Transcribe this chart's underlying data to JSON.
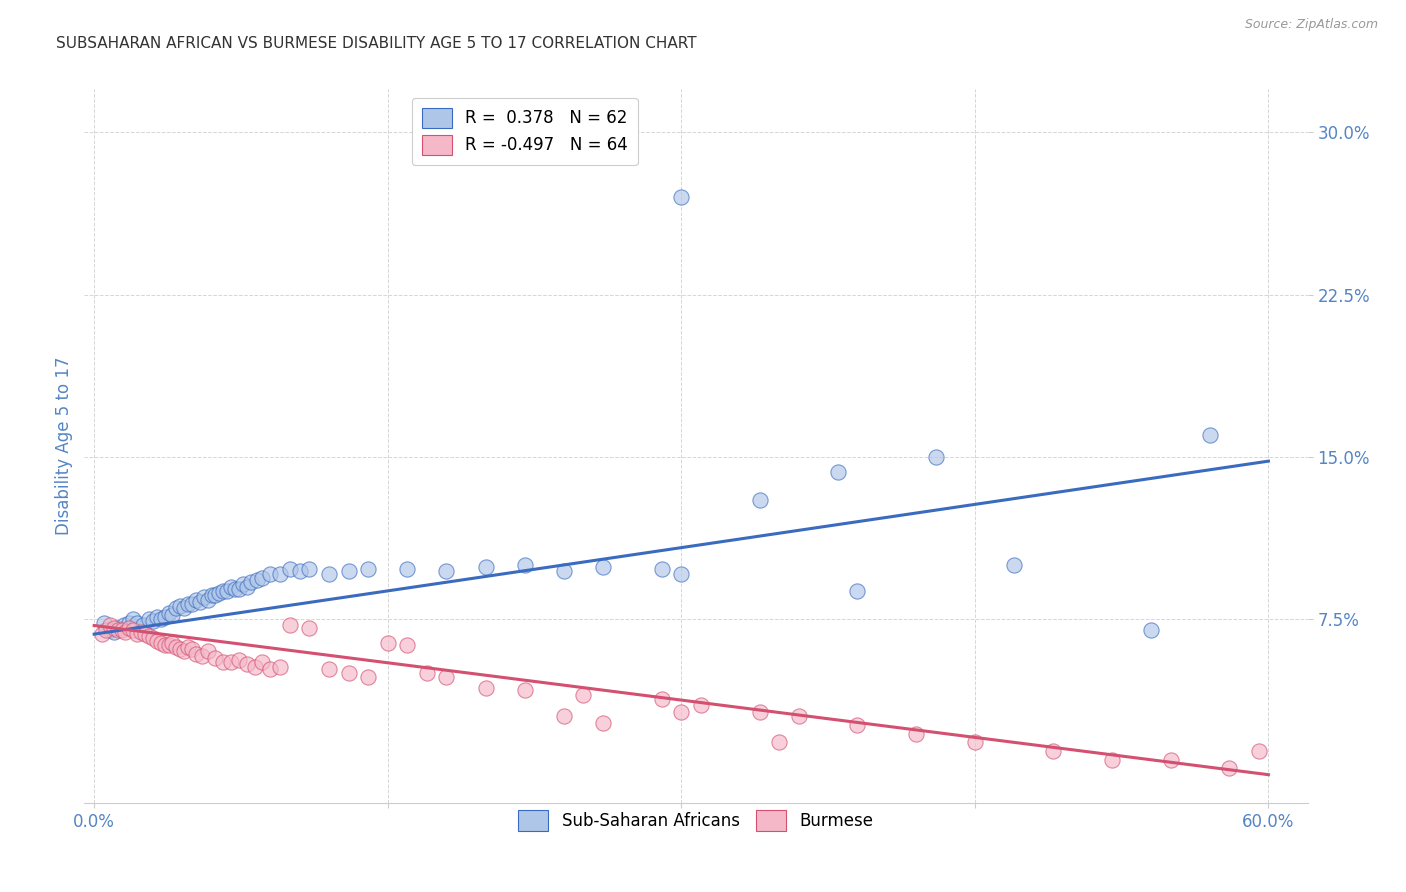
{
  "title": "SUBSAHARAN AFRICAN VS BURMESE DISABILITY AGE 5 TO 17 CORRELATION CHART",
  "source": "Source: ZipAtlas.com",
  "ylabel": "Disability Age 5 to 17",
  "xlim": [
    -0.005,
    0.62
  ],
  "ylim": [
    -0.01,
    0.32
  ],
  "xtick_positions": [
    0.0,
    0.15,
    0.3,
    0.45,
    0.6
  ],
  "xtick_labels": [
    "0.0%",
    "",
    "",
    "",
    "60.0%"
  ],
  "ytick_positions": [
    0.075,
    0.15,
    0.225,
    0.3
  ],
  "ytick_labels": [
    "7.5%",
    "15.0%",
    "22.5%",
    "30.0%"
  ],
  "legend1_label": "R =  0.378   N = 62",
  "legend2_label": "R = -0.497   N = 64",
  "legend_color1": "#aec6e8",
  "legend_color2": "#f4b8c8",
  "scatter_color1": "#aec6e8",
  "scatter_color2": "#f4b8c8",
  "line_color1": "#3a6bbf",
  "line_color2": "#d45070",
  "background_color": "#ffffff",
  "grid_color": "#cccccc",
  "title_color": "#333333",
  "axis_label_color": "#5585c5",
  "tick_label_color": "#5585c5",
  "source_color": "#999999",
  "line1_x": [
    0.0,
    0.6
  ],
  "line1_y": [
    0.068,
    0.148
  ],
  "line2_x": [
    0.0,
    0.6
  ],
  "line2_y": [
    0.072,
    0.003
  ],
  "sub_saharan_x": [
    0.005,
    0.008,
    0.01,
    0.012,
    0.015,
    0.018,
    0.02,
    0.022,
    0.025,
    0.028,
    0.03,
    0.032,
    0.034,
    0.036,
    0.038,
    0.04,
    0.042,
    0.044,
    0.046,
    0.048,
    0.05,
    0.052,
    0.054,
    0.056,
    0.058,
    0.06,
    0.062,
    0.064,
    0.066,
    0.068,
    0.07,
    0.072,
    0.074,
    0.076,
    0.078,
    0.08,
    0.083,
    0.086,
    0.09,
    0.095,
    0.1,
    0.105,
    0.11,
    0.12,
    0.13,
    0.14,
    0.16,
    0.18,
    0.2,
    0.22,
    0.24,
    0.26,
    0.29,
    0.3,
    0.34,
    0.38,
    0.43,
    0.47,
    0.54,
    0.57,
    0.3,
    0.39
  ],
  "sub_saharan_y": [
    0.073,
    0.07,
    0.069,
    0.071,
    0.072,
    0.073,
    0.075,
    0.073,
    0.072,
    0.075,
    0.074,
    0.076,
    0.075,
    0.076,
    0.078,
    0.077,
    0.08,
    0.081,
    0.08,
    0.082,
    0.082,
    0.084,
    0.083,
    0.085,
    0.084,
    0.086,
    0.086,
    0.087,
    0.088,
    0.088,
    0.09,
    0.089,
    0.089,
    0.091,
    0.09,
    0.092,
    0.093,
    0.094,
    0.096,
    0.096,
    0.098,
    0.097,
    0.098,
    0.096,
    0.097,
    0.098,
    0.098,
    0.097,
    0.099,
    0.1,
    0.097,
    0.099,
    0.098,
    0.27,
    0.13,
    0.143,
    0.15,
    0.1,
    0.07,
    0.16,
    0.096,
    0.088
  ],
  "burmese_x": [
    0.004,
    0.006,
    0.008,
    0.01,
    0.012,
    0.014,
    0.016,
    0.018,
    0.02,
    0.022,
    0.024,
    0.026,
    0.028,
    0.03,
    0.032,
    0.034,
    0.036,
    0.038,
    0.04,
    0.042,
    0.044,
    0.046,
    0.048,
    0.05,
    0.052,
    0.055,
    0.058,
    0.062,
    0.066,
    0.07,
    0.074,
    0.078,
    0.082,
    0.086,
    0.09,
    0.095,
    0.1,
    0.11,
    0.12,
    0.13,
    0.14,
    0.15,
    0.16,
    0.17,
    0.18,
    0.2,
    0.22,
    0.25,
    0.29,
    0.31,
    0.34,
    0.36,
    0.39,
    0.42,
    0.45,
    0.49,
    0.52,
    0.55,
    0.58,
    0.595,
    0.24,
    0.26,
    0.3,
    0.35
  ],
  "burmese_y": [
    0.068,
    0.07,
    0.072,
    0.071,
    0.07,
    0.07,
    0.069,
    0.071,
    0.07,
    0.068,
    0.069,
    0.068,
    0.067,
    0.066,
    0.065,
    0.064,
    0.063,
    0.063,
    0.064,
    0.062,
    0.061,
    0.06,
    0.062,
    0.061,
    0.059,
    0.058,
    0.06,
    0.057,
    0.055,
    0.055,
    0.056,
    0.054,
    0.053,
    0.055,
    0.052,
    0.053,
    0.072,
    0.071,
    0.052,
    0.05,
    0.048,
    0.064,
    0.063,
    0.05,
    0.048,
    0.043,
    0.042,
    0.04,
    0.038,
    0.035,
    0.032,
    0.03,
    0.026,
    0.022,
    0.018,
    0.014,
    0.01,
    0.01,
    0.006,
    0.014,
    0.03,
    0.027,
    0.032,
    0.018
  ]
}
